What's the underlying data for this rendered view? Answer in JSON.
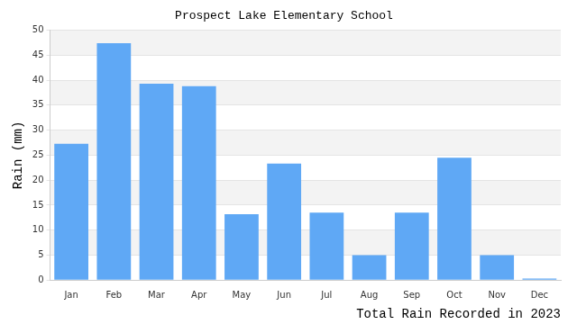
{
  "chart_data": {
    "type": "bar",
    "title": "Prospect Lake Elementary School",
    "x_label": "Total Rain Recorded in 2023",
    "y_label": "Rain (mm)",
    "categories": [
      "Jan",
      "Feb",
      "Mar",
      "Apr",
      "May",
      "Jun",
      "Jul",
      "Aug",
      "Sep",
      "Oct",
      "Nov",
      "Dec"
    ],
    "values": [
      27.3,
      47.4,
      39.3,
      38.8,
      13.2,
      23.3,
      13.5,
      5.0,
      13.5,
      24.5,
      5.0,
      0.3
    ],
    "color": "#5fa8f5",
    "ylim": [
      0,
      50
    ],
    "yticks": [
      0,
      5,
      10,
      15,
      20,
      25,
      30,
      35,
      40,
      45,
      50
    ],
    "grid": true
  }
}
